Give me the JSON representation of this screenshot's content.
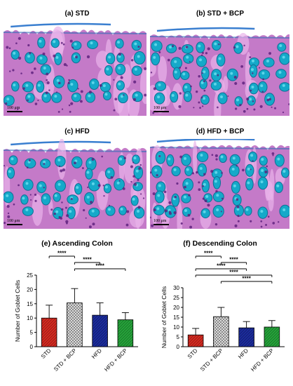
{
  "panels": {
    "a": {
      "label": "(a) STD",
      "scale": "100 μm"
    },
    "b": {
      "label": "(b) STD + BCP",
      "scale": "100 μm"
    },
    "c": {
      "label": "(c) HFD",
      "scale": "100 μm"
    },
    "d": {
      "label": "(d) HFD + BCP",
      "scale": "100 μm"
    }
  },
  "chart_data": [
    {
      "type": "bar",
      "title": "(e) Ascending Colon",
      "ylabel": "Number of Goblet Cells",
      "categories": [
        "STD",
        "STD + BCP",
        "HFD",
        "HFD + BCP"
      ],
      "values": [
        10.0,
        15.3,
        11.0,
        9.4
      ],
      "errors": [
        4.5,
        5.0,
        4.3,
        2.5
      ],
      "ylim": [
        0,
        25
      ],
      "yticks": [
        0,
        5,
        10,
        15,
        20,
        25
      ],
      "colors": [
        "#d42a20",
        "#e6e6e6",
        "#1b2b9c",
        "#25a33a"
      ],
      "patterns": [
        "solid-hatch",
        "cross-hatch",
        "dense-hatch",
        "dense-hatch"
      ],
      "significance": [
        {
          "from": 0,
          "to": 1,
          "label": "****"
        },
        {
          "from": 1,
          "to": 2,
          "label": "****"
        },
        {
          "from": 1,
          "to": 3,
          "label": "****"
        }
      ]
    },
    {
      "type": "bar",
      "title": "(f) Descending Colon",
      "ylabel": "Number of Goblet Cells",
      "categories": [
        "STD",
        "STD + BCP",
        "HFD",
        "HFD + BCP"
      ],
      "values": [
        6.0,
        15.3,
        9.6,
        10.0
      ],
      "errors": [
        3.3,
        4.7,
        3.2,
        3.3
      ],
      "ylim": [
        0,
        30
      ],
      "yticks": [
        0,
        5,
        10,
        15,
        20,
        25,
        30
      ],
      "colors": [
        "#d42a20",
        "#e6e6e6",
        "#1b2b9c",
        "#25a33a"
      ],
      "patterns": [
        "solid-hatch",
        "cross-hatch",
        "dense-hatch",
        "dense-hatch"
      ],
      "significance": [
        {
          "from": 0,
          "to": 1,
          "label": "****"
        },
        {
          "from": 1,
          "to": 2,
          "label": "****"
        },
        {
          "from": 0,
          "to": 2,
          "label": "****"
        },
        {
          "from": 0,
          "to": 3,
          "label": "****"
        },
        {
          "from": 1,
          "to": 3,
          "label": "****"
        }
      ]
    }
  ]
}
